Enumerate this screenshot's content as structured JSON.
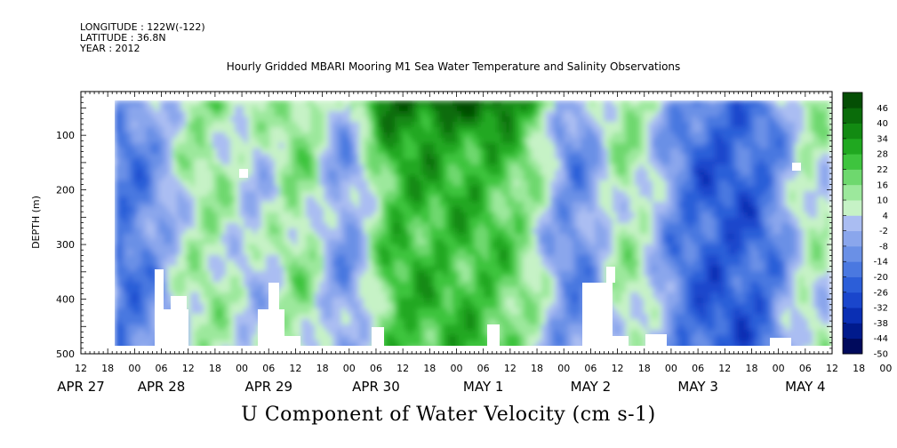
{
  "header": {
    "longitude": "LONGITUDE : 122W(-122)",
    "latitude": "LATITUDE : 36.8N",
    "year": "YEAR : 2012"
  },
  "chart_data": {
    "type": "heatmap",
    "title": "Hourly Gridded MBARI Mooring M1 Sea Water Temperature and Salinity Observations",
    "xlabel": "U Component of Water Velocity (cm s-1)",
    "ylabel": "DEPTH (m)",
    "ylim": [
      500,
      20
    ],
    "y_ticks": [
      100,
      200,
      300,
      400,
      500
    ],
    "x_range_hours": [
      "2012-04-27 12:00",
      "2012-05-04 12:00"
    ],
    "hour_tick_labels": [
      "12",
      "18",
      "00",
      "06",
      "12",
      "18",
      "00",
      "06",
      "12",
      "18",
      "00",
      "06",
      "12",
      "18",
      "00",
      "06",
      "12",
      "18",
      "00",
      "06",
      "12",
      "18",
      "00",
      "06",
      "12",
      "18",
      "00",
      "06",
      "12",
      "18",
      "00",
      "06",
      "12"
    ],
    "day_labels": [
      "APR 27",
      "APR 28",
      "APR 29",
      "APR 30",
      "MAY  1",
      "MAY  2",
      "MAY  3",
      "MAY  4"
    ],
    "colorbar": {
      "levels": [
        -50,
        -44,
        -38,
        -32,
        -26,
        -20,
        -14,
        -8,
        -2,
        4,
        10,
        16,
        22,
        28,
        34,
        40,
        46
      ],
      "tick_labels": [
        "46",
        "40",
        "34",
        "28",
        "22",
        "16",
        "10",
        "4",
        "-2",
        "-8",
        "-14",
        "-20",
        "-26",
        "-32",
        "-38",
        "-44",
        "-50"
      ],
      "colors": [
        "#000a5c",
        "#001a8c",
        "#0a2fb4",
        "#1a46cc",
        "#2c5ed8",
        "#4a78e0",
        "#6a90e6",
        "#8aa6ec",
        "#aabdf2",
        "#c6f2c6",
        "#9ce89c",
        "#6ed86e",
        "#3ec43e",
        "#20a820",
        "#128a12",
        "#0a6c0a",
        "#044e04"
      ]
    },
    "data_gaps": [
      "Missing data at the bottom of the depth range (below ~340-480 m) during parts of Apr 28, Apr 29, Apr 30, May 1, May 2 and late May 2-May 3; isolated missing cells near 160 m on Apr 29 00h and near 140 m on May 4 06h"
    ],
    "pattern": "Alternating vertical bands of positive (green, eastward) and negative (blue, westward) velocity, strongest positive values 30-46 near the surface (20-80 m) from Apr 29 to May 1; negative bands around Apr 28 00h, Apr 29 00h, May 1 06h and May 2 12h-May 4."
  }
}
